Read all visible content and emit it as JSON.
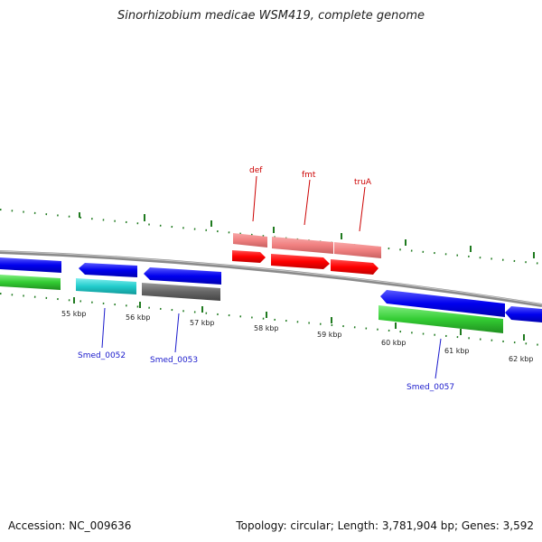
{
  "title": "Sinorhizobium medicae WSM419, complete genome",
  "accession_text": "Accession: NC_009636",
  "summary_text": "Topology: circular; Length: 3,781,904 bp; Genes: 3,592",
  "colors": {
    "forward_cds": "#0000ee",
    "forward_cds_top": "#4a4aff",
    "reverse_red": "#ff0000",
    "reverse_red_light": "#f08080",
    "cyan_feature": "#22cccc",
    "green_feature": "#33cc33",
    "grey_feature": "#666666",
    "backbone": "#888888",
    "ticks": "#1f7a1f",
    "label_red": "#cc0000",
    "label_blue": "#1a1acc"
  },
  "kbp_labels": [
    "55 kbp",
    "56 kbp",
    "57 kbp",
    "58 kbp",
    "59 kbp",
    "60 kbp",
    "61 kbp",
    "62 kbp"
  ],
  "gene_labels": {
    "def": "def",
    "fmt": "fmt",
    "truA": "truA",
    "smed_0052": "Smed_0052",
    "smed_0053": "Smed_0053",
    "smed_0057": "Smed_0057"
  }
}
